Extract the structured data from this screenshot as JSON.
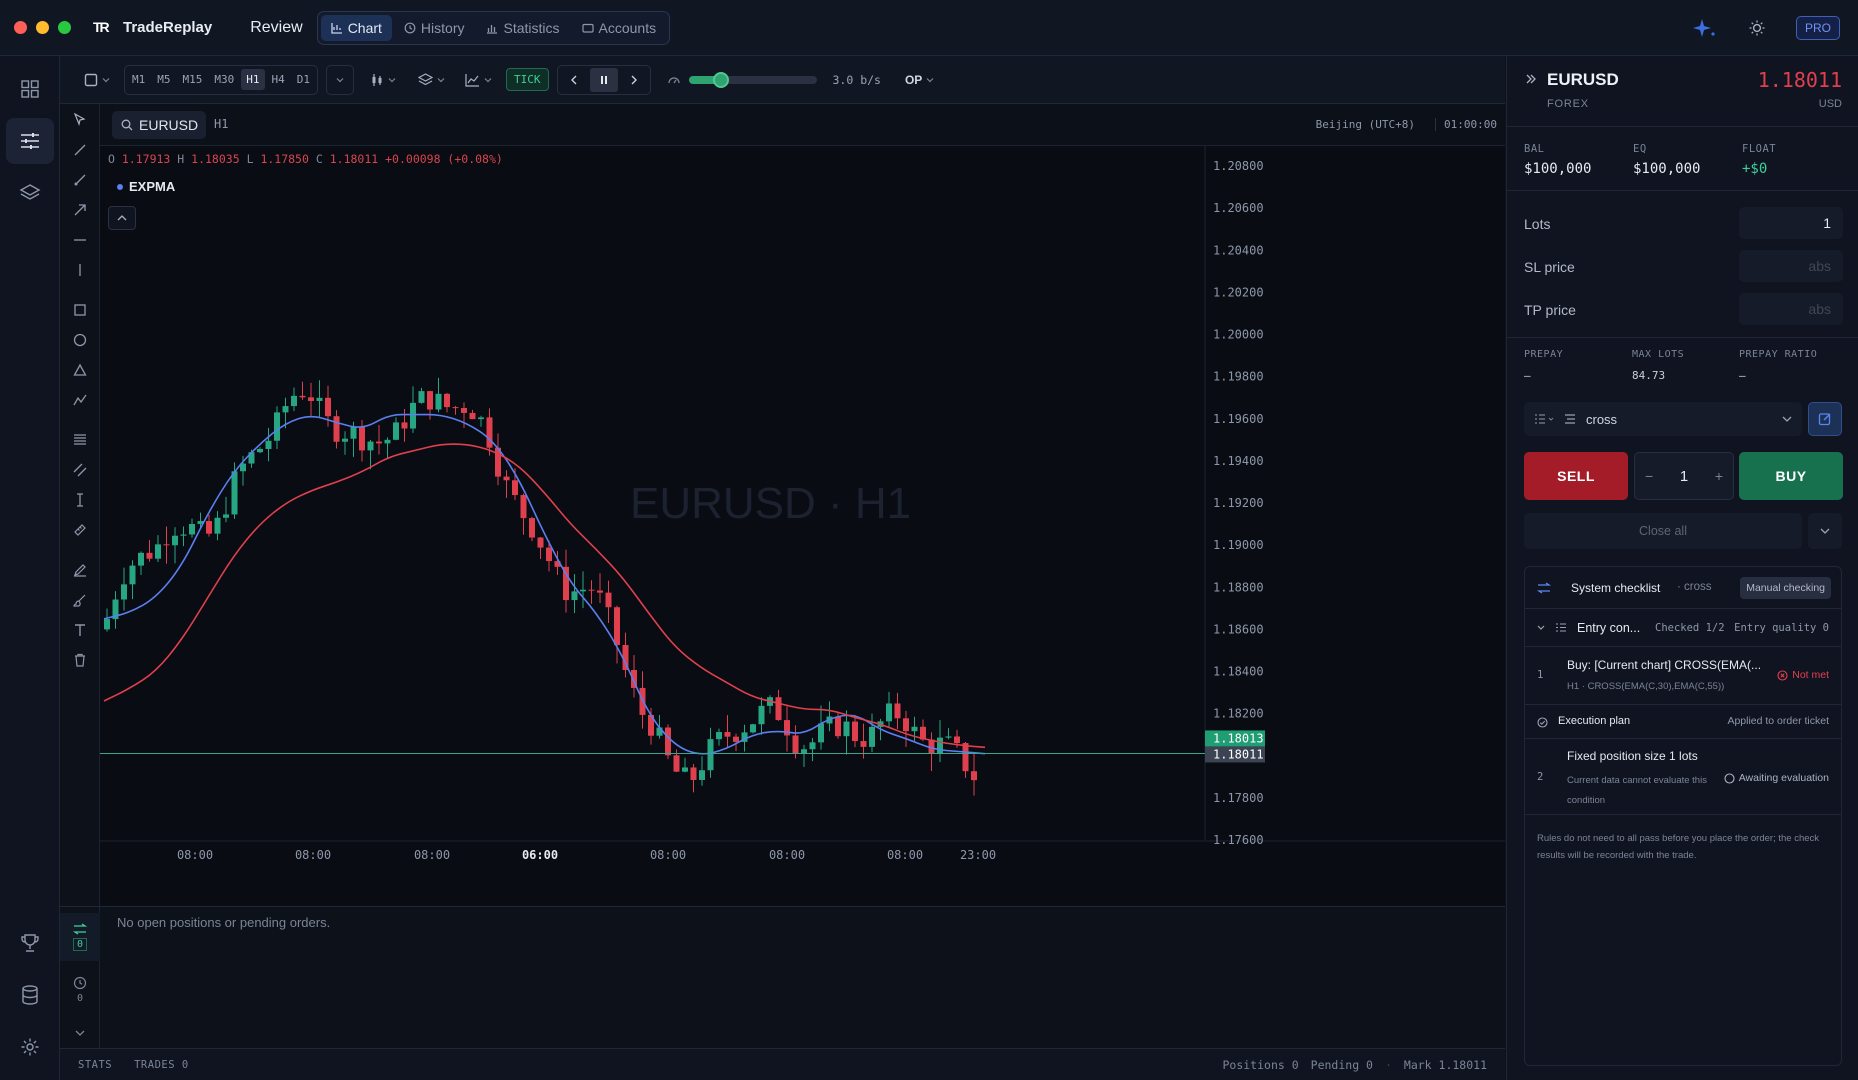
{
  "app": {
    "name": "TradeReplay",
    "logo": "TR",
    "mode": "Review"
  },
  "nav": {
    "tabs": [
      {
        "label": "Chart"
      },
      {
        "label": "History"
      },
      {
        "label": "Statistics"
      },
      {
        "label": "Accounts"
      }
    ]
  },
  "header_right": {
    "pro": "PRO"
  },
  "timeframes": [
    "M1",
    "M5",
    "M15",
    "M30",
    "H1",
    "H4",
    "D1"
  ],
  "active_timeframe": "H1",
  "toolbar": {
    "tick": "TICK",
    "speed": "3.0 b/s",
    "speed_level": 0.25,
    "op": "OP"
  },
  "chart": {
    "symbol": "EURUSD",
    "tf": "H1",
    "timezone": "Beijing (UTC+8)",
    "countdown": "01:00:00",
    "ohlc": {
      "o": "1.17913",
      "h": "1.18035",
      "l": "1.17850",
      "c": "1.18011",
      "chg": "+0.00098 (+0.08%)"
    },
    "indicator": "EXPMA",
    "watermark": "EURUSD · H1",
    "badge_high": "1.18013",
    "badge_last": "1.18011"
  },
  "chart_data": {
    "type": "line",
    "title": "",
    "y_ticks": [
      "1.20800",
      "1.20600",
      "1.20400",
      "1.20200",
      "1.20000",
      "1.19800",
      "1.19600",
      "1.19400",
      "1.19200",
      "1.19000",
      "1.18800",
      "1.18600",
      "1.18400",
      "1.18200",
      "1.18000",
      "1.17800",
      "1.17600"
    ],
    "ylim": [
      1.176,
      1.209
    ],
    "x_ticks": [
      "08:00",
      "08:00",
      "08:00",
      "06:00",
      "08:00",
      "08:00",
      "08:00",
      "23:00"
    ],
    "series": [
      {
        "values": [
          1.1865,
          1.1868,
          1.1875,
          1.189,
          1.1915,
          1.1935,
          1.1948,
          1.1958,
          1.1962,
          1.1958,
          1.1955,
          1.1962,
          1.1962,
          1.1962,
          1.1958,
          1.195,
          1.1932,
          1.1905,
          1.1882,
          1.1868,
          1.1848,
          1.182,
          1.1805,
          1.18,
          1.1803,
          1.181,
          1.1812,
          1.181,
          1.1818,
          1.182,
          1.1812,
          1.1808,
          1.1803,
          1.1802,
          1.1801
        ],
        "color": "#5b7ef0"
      },
      {
        "values": [
          1.1826,
          1.1832,
          1.184,
          1.1855,
          1.1875,
          1.1895,
          1.191,
          1.192,
          1.1926,
          1.193,
          1.1935,
          1.1942,
          1.1945,
          1.1948,
          1.1948,
          1.1945,
          1.1938,
          1.1925,
          1.191,
          1.1898,
          1.1885,
          1.1868,
          1.1852,
          1.1842,
          1.1835,
          1.1828,
          1.1825,
          1.1822,
          1.1822,
          1.1818,
          1.1815,
          1.181,
          1.1807,
          1.1805,
          1.1804
        ],
        "color": "#e0404e"
      }
    ],
    "last_price": 1.18011,
    "grid": false
  },
  "bottom": {
    "empty": "No open positions or pending orders.",
    "positions_count": "0",
    "history_count": "0"
  },
  "status": {
    "stats": "STATS",
    "trades": "TRADES 0",
    "positions": "Positions 0",
    "pending": "Pending 0",
    "mark": "Mark 1.18011"
  },
  "right": {
    "symbol": "EURUSD",
    "market": "FOREX",
    "price": "1.18011",
    "currency": "USD",
    "bal_label": "BAL",
    "bal": "$100,000",
    "eq_label": "EQ",
    "eq": "$100,000",
    "float_label": "FLOAT",
    "float": "+$0",
    "lots_label": "Lots",
    "lots": "1",
    "sl_label": "SL price",
    "sl_ph": "abs",
    "tp_label": "TP price",
    "tp_ph": "abs",
    "prepay_label": "PREPAY",
    "prepay": "–",
    "maxlots_label": "MAX LOTS",
    "maxlots": "84.73",
    "ratio_label": "PREPAY RATIO",
    "ratio": "–",
    "strategy": "cross",
    "sell": "SELL",
    "buy": "BUY",
    "qty": "1",
    "close_all": "Close all",
    "checklist": {
      "title": "System checklist",
      "subtitle": "· cross",
      "manual": "Manual checking",
      "entry": "Entry con...",
      "checked": "Checked 1/2",
      "quality": "Entry quality 0",
      "rule1_num": "1",
      "rule1": "Buy: [Current chart] CROSS(EMA(...",
      "rule1_sub": "H1 · CROSS(EMA(C,30),EMA(C,55))",
      "rule1_status": "Not met",
      "exec": "Execution plan",
      "exec_status": "Applied to order ticket",
      "rule2_num": "2",
      "rule2": "Fixed position size 1 lots",
      "rule2_sub": "Current data cannot evaluate this condition",
      "rule2_status": "Awaiting evaluation",
      "footer": "Rules do not need to all pass before you place the order; the check results will be recorded with the trade."
    }
  },
  "colors": {
    "up": "#26a682",
    "down": "#e0404e",
    "accent": "#3b6fe0"
  }
}
